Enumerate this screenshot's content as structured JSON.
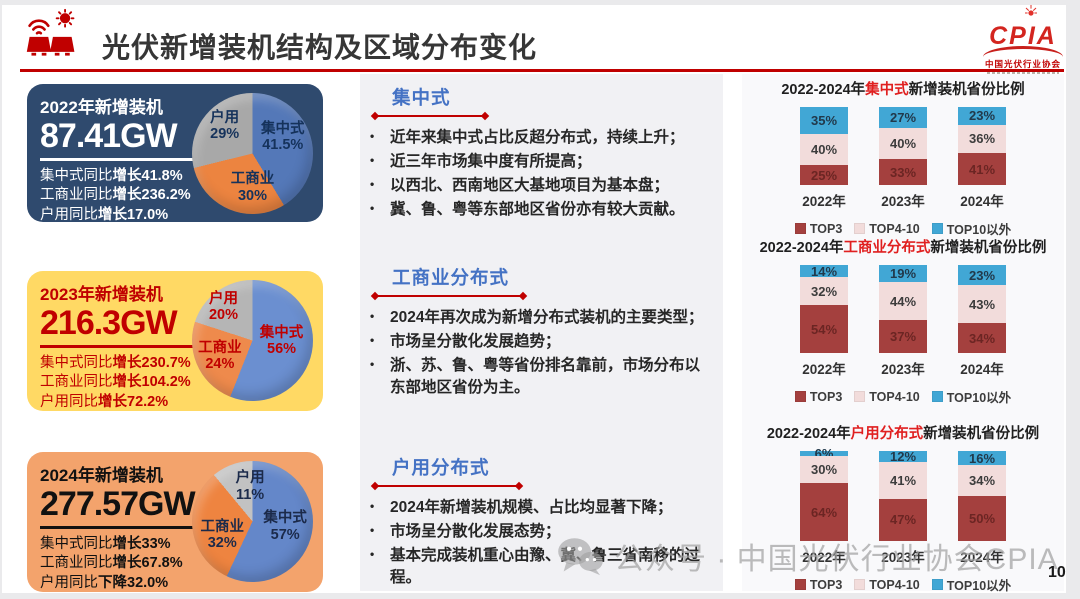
{
  "header": {
    "title": "光伏新增装机结构及区域分布变化",
    "logo": {
      "brand": "CPIA",
      "org": "中国光伏行业协会"
    }
  },
  "cards": [
    {
      "year_label": "2022年新增装机",
      "capacity": "87.41GW",
      "stats": [
        {
          "label": "集中式同比",
          "value": "增长41.8%"
        },
        {
          "label": "工商业同比",
          "value": "增长236.2%"
        },
        {
          "label": "户用同比",
          "value": "增长17.0%"
        }
      ],
      "style": {
        "bg": "#2F4A6E",
        "text": "#FFFFFF",
        "rule": "#FFFFFF"
      }
    },
    {
      "year_label": "2023年新增装机",
      "capacity": "216.3GW",
      "stats": [
        {
          "label": "集中式同比",
          "value": "增长230.7%"
        },
        {
          "label": "工商业同比",
          "value": "增长104.2%"
        },
        {
          "label": "户用同比",
          "value": "增长72.2%"
        }
      ],
      "style": {
        "bg": "#FFD964",
        "text": "#C00000",
        "rule": "#C00000"
      }
    },
    {
      "year_label": "2024年新增装机",
      "capacity": "277.57GW",
      "stats": [
        {
          "label": "集中式同比",
          "value": "增长33%"
        },
        {
          "label": "工商业同比",
          "value": "增长67.8%"
        },
        {
          "label": "户用同比",
          "value": "下降32.0%"
        }
      ],
      "style": {
        "bg": "#F3A36C",
        "text": "#111111",
        "rule": "#111111"
      }
    }
  ],
  "sections": [
    {
      "heading": "集中式",
      "bullets": [
        "近年来集中式占比反超分布式，持续上升；",
        "近三年市场集中度有所提高；",
        "以西北、西南地区大基地项目为基本盘；",
        "冀、鲁、粤等东部地区省份亦有较大贡献。"
      ]
    },
    {
      "heading": "工商业分布式",
      "bullets": [
        "2024年再次成为新增分布式装机的主要类型；",
        "市场呈分散化发展趋势；",
        "浙、苏、鲁、粤等省份排名靠前，市场分布以东部地区省份为主。"
      ]
    },
    {
      "heading": "户用分布式",
      "bullets": [
        "2024年新增装机规模、占比均显著下降；",
        "市场呈分散化发展态势；",
        "基本完成装机重心由豫、冀、鲁三省南移的过程。"
      ]
    }
  ],
  "chart_data": [
    {
      "type": "pie",
      "labels": [
        "集中式",
        "工商业",
        "户用"
      ],
      "values": [
        41.5,
        30,
        29
      ],
      "display": [
        "41.5%",
        "30%",
        "29%"
      ],
      "colors": [
        "#5478B8",
        "#EC8440",
        "#A8A8A8"
      ],
      "label_color": "#15325B"
    },
    {
      "type": "pie",
      "labels": [
        "集中式",
        "工商业",
        "户用"
      ],
      "values": [
        56,
        24,
        20
      ],
      "display": [
        "56%",
        "24%",
        "20%"
      ],
      "colors": [
        "#6B8FD0",
        "#EE8A4C",
        "#B5B5B5"
      ],
      "label_color": "#C00000"
    },
    {
      "type": "pie",
      "labels": [
        "集中式",
        "工商业",
        "户用"
      ],
      "values": [
        57,
        32,
        11
      ],
      "display": [
        "57%",
        "32%",
        "11%"
      ],
      "colors": [
        "#6487C9",
        "#EE8440",
        "#C2C2C2"
      ],
      "label_color": "#1B2A4A"
    },
    {
      "type": "stacked-bar",
      "title_parts": {
        "prefix": "2022-2024年",
        "highlight": "集中式",
        "suffix": "新增装机省份比例"
      },
      "categories": [
        "2022年",
        "2023年",
        "2024年"
      ],
      "series": [
        {
          "name": "TOP3",
          "color": "#A4403E",
          "label_color": "#6B2523",
          "values": [
            25,
            33,
            41
          ]
        },
        {
          "name": "TOP4-10",
          "color": "#F2DCDB",
          "label_color": "#3C3C3C",
          "values": [
            40,
            40,
            36
          ]
        },
        {
          "name": "TOP10以外",
          "color": "#41A7D5",
          "label_color": "#21394B",
          "values": [
            35,
            27,
            23
          ]
        }
      ],
      "ylim": [
        0,
        100
      ],
      "legend_position": "bottom"
    },
    {
      "type": "stacked-bar",
      "title_parts": {
        "prefix": "2022-2024年",
        "highlight": "工商业分布式",
        "suffix": "新增装机省份比例"
      },
      "categories": [
        "2022年",
        "2023年",
        "2024年"
      ],
      "series": [
        {
          "name": "TOP3",
          "color": "#A4403E",
          "label_color": "#6B2523",
          "values": [
            54,
            37,
            34
          ]
        },
        {
          "name": "TOP4-10",
          "color": "#F2DCDB",
          "label_color": "#3C3C3C",
          "values": [
            32,
            44,
            43
          ]
        },
        {
          "name": "TOP10以外",
          "color": "#41A7D5",
          "label_color": "#21394B",
          "values": [
            14,
            19,
            23
          ]
        }
      ],
      "ylim": [
        0,
        100
      ],
      "legend_position": "bottom"
    },
    {
      "type": "stacked-bar",
      "title_parts": {
        "prefix": "2022-2024年",
        "highlight": "户用分布式",
        "suffix": "新增装机省份比例"
      },
      "categories": [
        "2022年",
        "2023年",
        "2024年"
      ],
      "series": [
        {
          "name": "TOP3",
          "color": "#A4403E",
          "label_color": "#6B2523",
          "values": [
            64,
            47,
            50
          ]
        },
        {
          "name": "TOP4-10",
          "color": "#F2DCDB",
          "label_color": "#3C3C3C",
          "values": [
            30,
            41,
            34
          ]
        },
        {
          "name": "TOP10以外",
          "color": "#41A7D5",
          "label_color": "#21394B",
          "values": [
            6,
            12,
            16
          ]
        }
      ],
      "ylim": [
        0,
        100
      ],
      "legend_position": "bottom"
    }
  ],
  "watermark": "公众号 · 中国光伏行业协会CPIA",
  "page_number": "10"
}
